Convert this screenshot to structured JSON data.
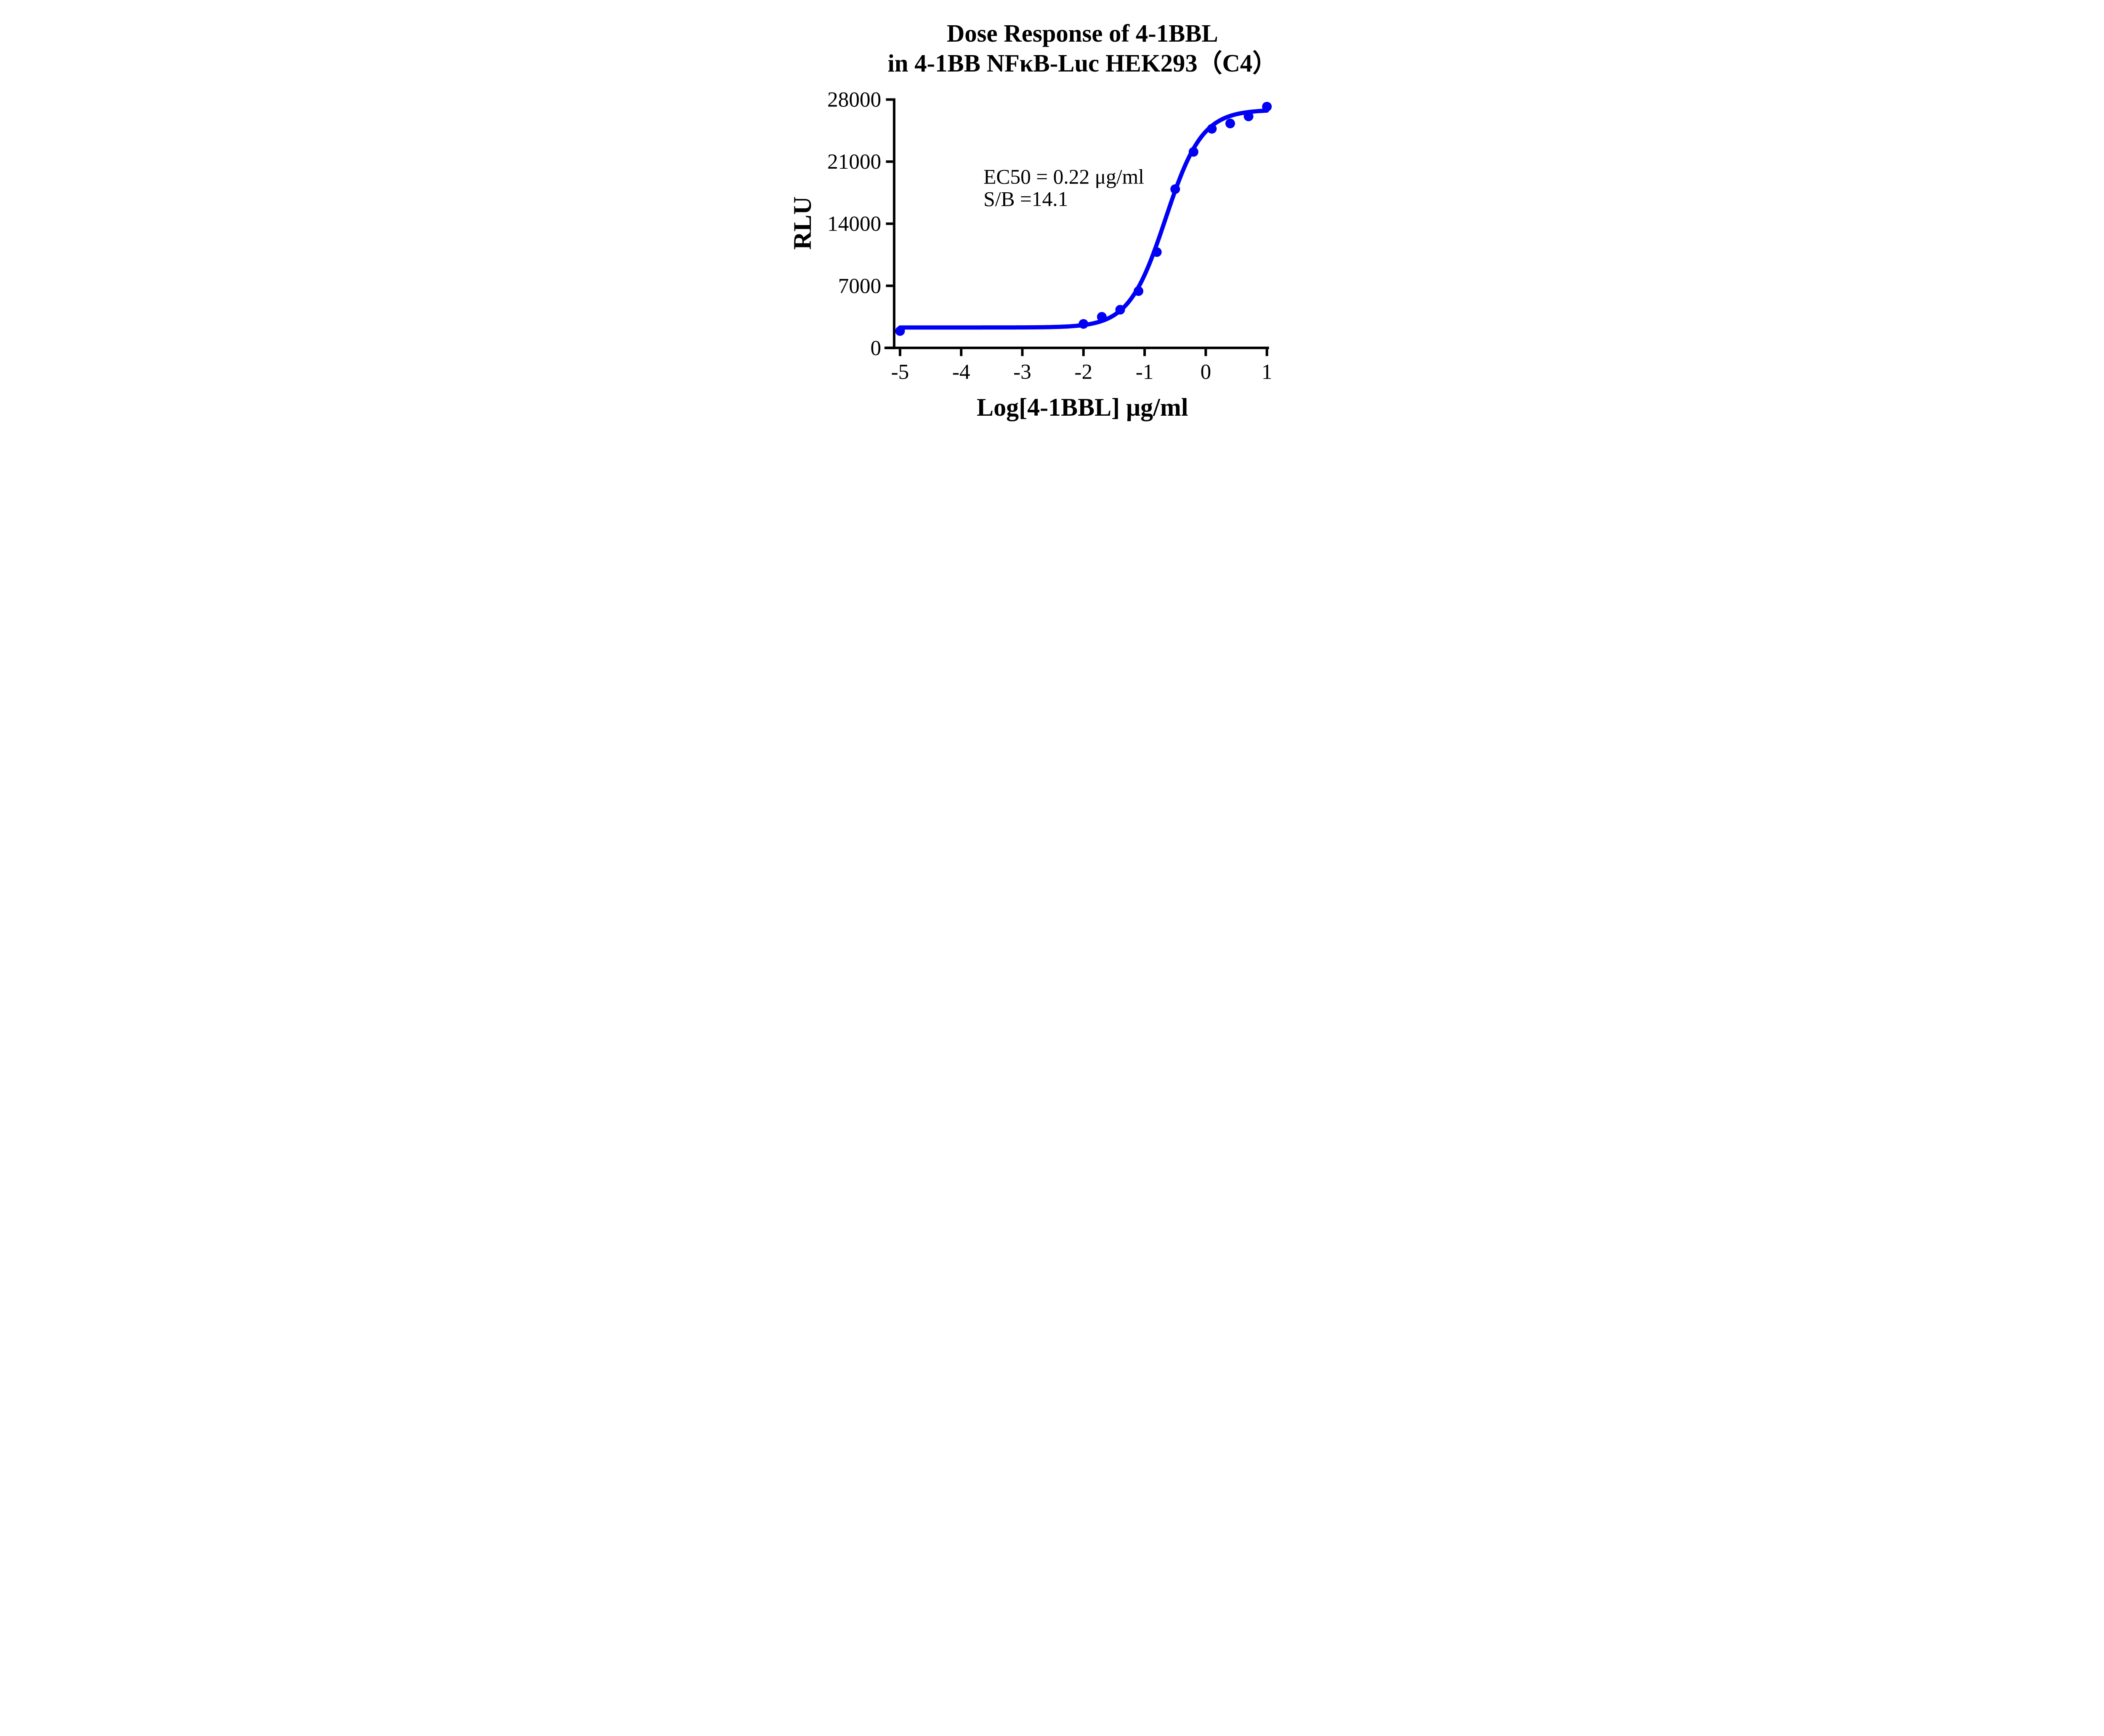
{
  "chart_data": {
    "type": "scatter",
    "title_line1": "Dose Response of 4-1BBL",
    "title_line2": "in 4-1BB NFκB-Luc HEK293（C4）",
    "xlabel": "Log[4-1BBL] μg/ml",
    "ylabel": "RLU",
    "annotation": {
      "line1": "EC50 = 0.22 μg/ml",
      "line2": "S/B =14.1"
    },
    "ec50_ug_ml": 0.22,
    "s_over_b": 14.1,
    "x_ticks": [
      -5,
      -4,
      -3,
      -2,
      -1,
      0,
      1
    ],
    "y_ticks": [
      0,
      7000,
      14000,
      21000,
      28000
    ],
    "xlim": [
      -5,
      1
    ],
    "ylim": [
      0,
      28000
    ],
    "grid": false,
    "legend": "none",
    "accent_color": "#0000f6",
    "axis_color": "#000000",
    "series": [
      {
        "name": "4-1BBL",
        "marker": "circle",
        "color": "#0000f6",
        "points": [
          [
            -5.0,
            1900
          ],
          [
            -2.0,
            2700
          ],
          [
            -1.7,
            3500
          ],
          [
            -1.4,
            4300
          ],
          [
            -1.1,
            6400
          ],
          [
            -0.8,
            10800
          ],
          [
            -0.5,
            17900
          ],
          [
            -0.2,
            22100
          ],
          [
            0.1,
            24700
          ],
          [
            0.4,
            25300
          ],
          [
            0.7,
            26100
          ],
          [
            1.0,
            27200
          ]
        ]
      }
    ],
    "fit": {
      "model": "4PL",
      "bottom": 2300,
      "top": 26850,
      "log_ec50": -0.657,
      "hill": 1.45,
      "x_start": -5.0,
      "x_end": 1.0
    }
  }
}
